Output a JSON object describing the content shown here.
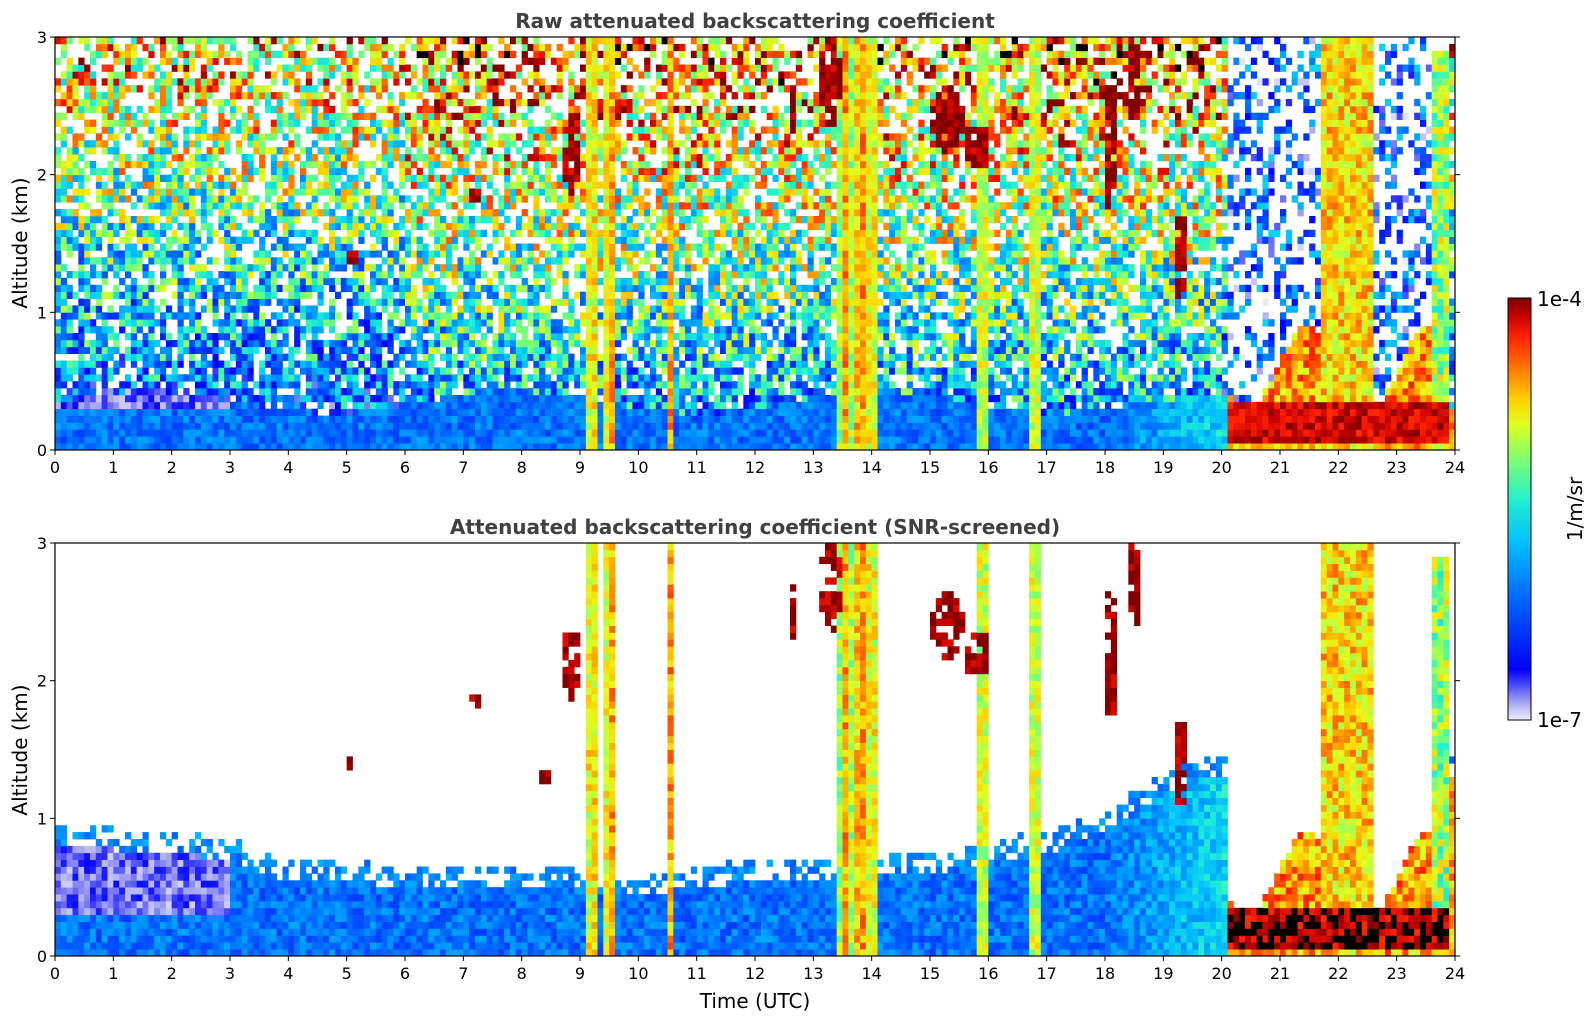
{
  "colors": {
    "colormap": [
      "#ffffff",
      "#c8c8f0",
      "#0000ff",
      "#0050ff",
      "#00a0ff",
      "#00e0e0",
      "#40ff80",
      "#c0ff40",
      "#ffe000",
      "#ff8000",
      "#ff2000",
      "#b00000",
      "#7a0000"
    ],
    "frame": "#000000",
    "title_text": "#404040"
  },
  "colorbar": {
    "label": "1/m/sr",
    "max_label": "1e-4",
    "min_label": "1e-7",
    "scale": "log",
    "range": [
      1e-07,
      0.0001
    ]
  },
  "chart_data": [
    {
      "type": "heatmap",
      "title": "Raw attenuated backscattering coefficient",
      "xlabel": "",
      "ylabel": "Altitude (km)",
      "xlim": [
        0,
        24
      ],
      "ylim": [
        0,
        3
      ],
      "xticks": [
        "0",
        "1",
        "2",
        "3",
        "4",
        "5",
        "6",
        "7",
        "8",
        "9",
        "10",
        "11",
        "12",
        "13",
        "14",
        "15",
        "16",
        "17",
        "18",
        "19",
        "20",
        "21",
        "22",
        "23",
        "24"
      ],
      "yticks": [
        "0",
        "1",
        "2",
        "3"
      ],
      "colorscale": "jet-log",
      "features": [
        {
          "description": "boundary layer aerosol",
          "x_range": [
            0,
            20
          ],
          "altitude_top_km": 0.4,
          "log10_value": -6.0
        },
        {
          "description": "precipitation streaks",
          "times_utc": [
            9.2,
            9.5,
            13.6,
            13.8,
            14.0,
            15.9,
            16.8
          ],
          "log10_value": -5.4
        },
        {
          "description": "rain / cloud after 20 UTC",
          "x_range": [
            20.1,
            23.8
          ],
          "altitude_top_km": 3,
          "log10_value": -4.6
        },
        {
          "description": "cloud layer near ground",
          "x_range": [
            20.1,
            23.8
          ],
          "altitude_range_km": [
            0.05,
            0.35
          ],
          "log10_value": -4.1
        },
        {
          "description": "elevated cloud fragments",
          "times_utc": [
            8.8,
            12.5,
            13.2,
            15.3,
            15.8,
            18.1,
            18.5
          ],
          "altitude_range_km": [
            1.8,
            3.0
          ],
          "log10_value": -4.1
        }
      ]
    },
    {
      "type": "heatmap",
      "title": "Attenuated backscattering coefficient (SNR-screened)",
      "xlabel": "Time (UTC)",
      "ylabel": "Altitude (km)",
      "xlim": [
        0,
        24
      ],
      "ylim": [
        0,
        3
      ],
      "xticks": [
        "0",
        "1",
        "2",
        "3",
        "4",
        "5",
        "6",
        "7",
        "8",
        "9",
        "10",
        "11",
        "12",
        "13",
        "14",
        "15",
        "16",
        "17",
        "18",
        "19",
        "20",
        "21",
        "22",
        "23",
        "24"
      ],
      "yticks": [
        "0",
        "1",
        "2",
        "3"
      ],
      "colorscale": "jet-log",
      "features": [
        {
          "description": "screened aerosol layer",
          "x_range": [
            0,
            20
          ],
          "altitude_top_km": [
            0.8,
            0.7,
            0.5,
            0.55,
            0.5,
            0.45,
            0.5,
            0.55,
            0.6,
            0.9,
            1.3
          ],
          "log10_value": -6.0
        },
        {
          "description": "rain after 20 UTC",
          "x_range": [
            20.1,
            23.8
          ],
          "altitude_top_km": 3,
          "log10_value": -4.6
        },
        {
          "description": "strong attenuation (black)",
          "x_range": [
            20.1,
            23.8
          ],
          "altitude_range_km": [
            0.1,
            0.35
          ],
          "log10_value": -3.5
        }
      ]
    }
  ]
}
